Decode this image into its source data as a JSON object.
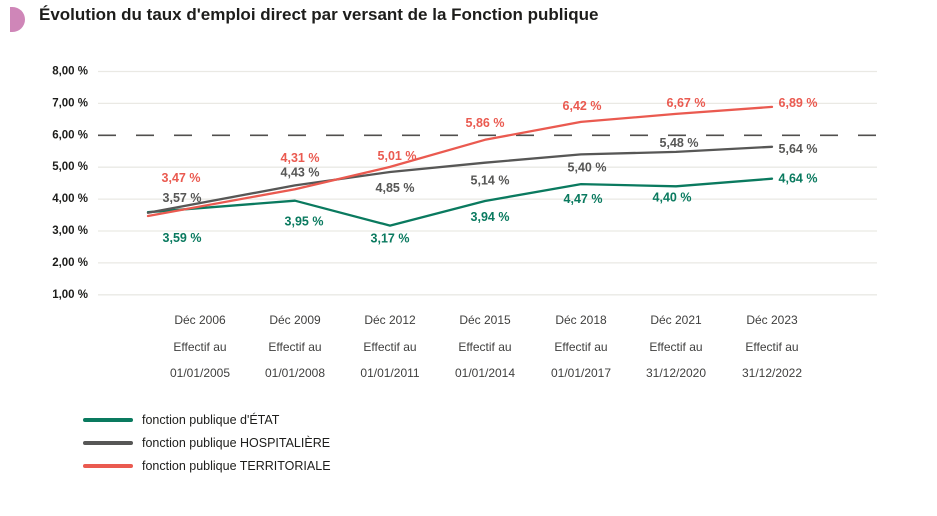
{
  "title": "Évolution du taux d'emploi direct par versant de la Fonction publique",
  "accent_color": "#cf86b8",
  "colors": {
    "etat_green": "#0a7a5f",
    "hospitaliere_gray": "#575756",
    "territoriale_red": "#ea5a50",
    "gridline": "#eae9e4",
    "reference_dash": "#504f4e",
    "axis_text": "#3f3f3e",
    "tick_text": "#1d1d1b"
  },
  "chart_data": {
    "type": "line",
    "title": "Évolution du taux d'emploi direct par versant de la Fonction publique",
    "categories": [
      {
        "period": "Déc 2006",
        "effectif": "Effectif au",
        "date": "01/01/2005"
      },
      {
        "period": "Déc 2009",
        "effectif": "Effectif au",
        "date": "01/01/2008"
      },
      {
        "period": "Déc 2012",
        "effectif": "Effectif au",
        "date": "01/01/2011"
      },
      {
        "period": "Déc 2015",
        "effectif": "Effectif au",
        "date": "01/01/2014"
      },
      {
        "period": "Déc 2018",
        "effectif": "Effectif au",
        "date": "01/01/2017"
      },
      {
        "period": "Déc 2021",
        "effectif": "Effectif au",
        "date": "31/12/2020"
      },
      {
        "period": "Déc 2023",
        "effectif": "Effectif au",
        "date": "31/12/2022"
      }
    ],
    "series": [
      {
        "name": "fonction publique d'ÉTAT",
        "color": "#0a7a5f",
        "values": [
          3.59,
          3.95,
          3.17,
          3.94,
          4.47,
          4.4,
          4.64
        ],
        "labels": [
          "3,59 %",
          "3,95 %",
          "3,17 %",
          "3,94 %",
          "4,47 %",
          "4,40 %",
          "4,64 %"
        ]
      },
      {
        "name": "fonction publique HOSPITALIÈRE",
        "color": "#575756",
        "values": [
          3.57,
          4.43,
          4.85,
          5.14,
          5.4,
          5.48,
          5.64
        ],
        "labels": [
          "3,57 %",
          "4,43 %",
          "4,85 %",
          "5,14 %",
          "5,40 %",
          "5,48 %",
          "5,64 %"
        ]
      },
      {
        "name": "fonction publique TERRITORIALE",
        "color": "#ea5a50",
        "values": [
          3.47,
          4.31,
          5.01,
          5.86,
          6.42,
          6.67,
          6.89
        ],
        "labels": [
          "3,47 %",
          "4,31 %",
          "5,01 %",
          "5,86 %",
          "6,42 %",
          "6,67 %",
          "6,89 %"
        ]
      }
    ],
    "y_ticks": [
      "8,00 %",
      "7,00 %",
      "6,00 %",
      "5,00 %",
      "4,00 %",
      "3,00 %",
      "2,00 %",
      "1,00 %"
    ],
    "y_tick_values": [
      8,
      7,
      6,
      5,
      4,
      3,
      2,
      1
    ],
    "ylim": [
      1,
      8
    ],
    "reference_line": 6,
    "grid": true,
    "legend_position": "bottom-left",
    "xlabel": "",
    "ylabel": ""
  }
}
